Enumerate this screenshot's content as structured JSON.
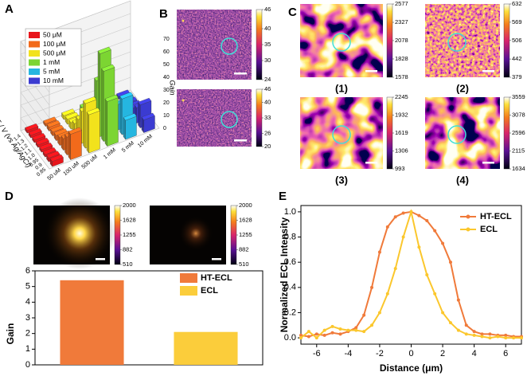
{
  "chart_data": [
    {
      "panel": "A",
      "type": "bar3d",
      "x_categories": [
        "50 uM",
        "100 uM",
        "500 uM",
        "1 mM",
        "5 mM",
        "10 mM"
      ],
      "categories": [
        "1.4",
        "1.3",
        "1.2",
        "1.1",
        "1.0",
        "0.95",
        "0.9",
        "0.85"
      ],
      "ylabel": "E / V (vs Ag/AgCl)",
      "zlabel": "Gain",
      "zlim": [
        0,
        70
      ],
      "zticks": [
        0,
        10,
        20,
        30,
        40,
        50,
        60,
        70
      ],
      "series": [
        {
          "name": "50 μM",
          "color": "#e8151b",
          "values": [
            2,
            2,
            2,
            2,
            2,
            2,
            3,
            4
          ]
        },
        {
          "name": "100 μM",
          "color": "#f26a1b",
          "values": [
            2,
            3,
            3,
            4,
            6,
            9,
            14,
            20
          ]
        },
        {
          "name": "500 μM",
          "color": "#f2e21c",
          "values": [
            3,
            4,
            5,
            8,
            15,
            25,
            35,
            30
          ]
        },
        {
          "name": "1 mM",
          "color": "#7cd532",
          "values": [
            4,
            6,
            10,
            20,
            40,
            65,
            55,
            35
          ]
        },
        {
          "name": "5 mM",
          "color": "#25b6e0",
          "values": [
            3,
            4,
            5,
            8,
            12,
            20,
            28,
            15
          ]
        },
        {
          "name": "10 mM",
          "color": "#3b3bd1",
          "values": [
            2,
            3,
            4,
            5,
            8,
            12,
            18,
            10
          ]
        }
      ]
    },
    {
      "panel": "D",
      "type": "bar",
      "ylabel": "Gain",
      "categories": [
        null,
        null
      ],
      "ylim": [
        0,
        6
      ],
      "yticks": [
        0,
        1,
        2,
        3,
        4,
        5,
        6
      ],
      "series": [
        {
          "name": "HT-ECL",
          "color": "#f07a3a",
          "values": [
            5.4,
            null
          ]
        },
        {
          "name": "ECL",
          "color": "#fbcd3b",
          "values": [
            null,
            2.1
          ]
        }
      ]
    },
    {
      "panel": "E",
      "type": "line",
      "xlabel": "Distance (μm)",
      "ylabel": "Normalized ECL Intensity",
      "x": [
        -7,
        -6.5,
        -6,
        -5.5,
        -5,
        -4.5,
        -4,
        -3.5,
        -3,
        -2.5,
        -2,
        -1.5,
        -1,
        -0.5,
        0,
        0.5,
        1,
        1.5,
        2,
        2.5,
        3,
        3.5,
        4,
        4.5,
        5,
        5.5,
        6,
        6.5,
        7
      ],
      "xlim": [
        -7,
        7
      ],
      "xticks": [
        -6,
        -4,
        -2,
        0,
        2,
        4,
        6
      ],
      "ylim": [
        -0.05,
        1.05
      ],
      "yticks": [
        {
          "value": 0,
          "label": "0.0"
        },
        {
          "value": 0.2,
          "label": "0.2"
        },
        {
          "value": 0.4,
          "label": "0.4"
        },
        {
          "value": 0.6,
          "label": "0.6"
        },
        {
          "value": 0.8,
          "label": "0.8"
        },
        {
          "value": 1,
          "label": "1.0"
        }
      ],
      "series": [
        {
          "name": "HT-ECL",
          "color": "#f07a3a",
          "values": [
            0.02,
            0.01,
            0.03,
            0.02,
            0.04,
            0.03,
            0.05,
            0.08,
            0.18,
            0.4,
            0.68,
            0.88,
            0.96,
            0.99,
            1.0,
            0.97,
            0.93,
            0.85,
            0.75,
            0.6,
            0.3,
            0.1,
            0.05,
            0.03,
            0.03,
            0.02,
            0.02,
            0.01,
            0.01
          ]
        },
        {
          "name": "ECL",
          "color": "#fbc72d",
          "values": [
            0.0,
            0.05,
            0.0,
            0.06,
            0.09,
            0.07,
            0.06,
            0.06,
            0.05,
            0.1,
            0.2,
            0.35,
            0.55,
            0.8,
            1.0,
            0.72,
            0.5,
            0.35,
            0.2,
            0.12,
            0.06,
            0.03,
            0.02,
            0.01,
            0.0,
            0.01,
            0.0,
            0.0,
            0.0
          ]
        }
      ]
    }
  ],
  "image_panels": [
    {
      "label": "B",
      "images": [
        {
          "colorbar": [
            46,
            40,
            35,
            30,
            24
          ]
        },
        {
          "colorbar": [
            46,
            40,
            33,
            26,
            20
          ]
        }
      ]
    },
    {
      "label": "C",
      "images": [
        {
          "caption": "(1)",
          "colorbar": [
            2577,
            2327,
            2078,
            1828,
            1578
          ]
        },
        {
          "caption": "(2)",
          "colorbar": [
            632,
            569,
            506,
            442,
            379
          ]
        },
        {
          "caption": "(3)",
          "colorbar": [
            2245,
            1932,
            1619,
            1306,
            993
          ]
        },
        {
          "caption": "(4)",
          "colorbar": [
            3559,
            3078,
            2596,
            2115,
            1634
          ]
        }
      ]
    },
    {
      "images": [
        {
          "colorbar": [
            2000,
            1628,
            1255,
            882,
            510
          ]
        },
        {
          "colorbar": [
            2000,
            1628,
            1255,
            882,
            510
          ]
        }
      ]
    }
  ]
}
